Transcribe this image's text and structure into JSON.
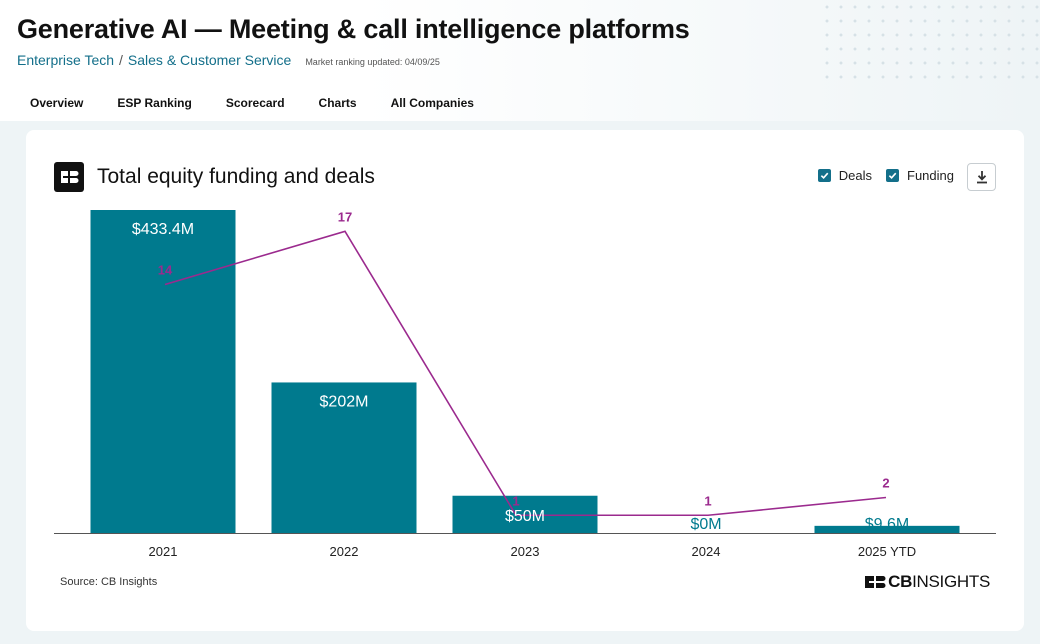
{
  "header": {
    "title": "Generative AI — Meeting & call intelligence platforms",
    "breadcrumb": [
      "Enterprise Tech",
      "Sales & Customer Service"
    ],
    "breadcrumb_sep": "/",
    "updated": "Market ranking updated: 04/09/25"
  },
  "tabs": [
    {
      "label": "Overview",
      "active": true
    },
    {
      "label": "ESP Ranking",
      "active": false
    },
    {
      "label": "Scorecard",
      "active": false
    },
    {
      "label": "Charts",
      "active": false
    },
    {
      "label": "All Companies",
      "active": false
    }
  ],
  "card": {
    "title": "Total equity funding and deals",
    "toggles": {
      "deals_label": "Deals",
      "funding_label": "Funding"
    },
    "source": "Source: CB Insights",
    "brand": {
      "bold": "CB",
      "rest": "INSIGHTS"
    }
  },
  "colors": {
    "bar": "#007a8e",
    "line": "#9b2a8e",
    "deals_label": "#9b2a8e",
    "accent": "#136f8a"
  },
  "icons": [
    "cb-insights-logo-icon",
    "checkbox-check-icon",
    "download-icon"
  ],
  "chart_data": {
    "type": "bar",
    "categories": [
      "2021",
      "2022",
      "2023",
      "2024",
      "2025 YTD"
    ],
    "series": [
      {
        "type": "bar",
        "values": [
          433.4,
          202,
          50,
          0,
          9.6
        ],
        "labels": [
          "$433.4M",
          "$202M",
          "$50M",
          "$0M",
          "$9.6M"
        ],
        "axis": "left"
      },
      {
        "type": "line",
        "values": [
          14,
          17,
          1,
          1,
          2
        ],
        "labels": [
          "14",
          "17",
          "1",
          "1",
          "2"
        ],
        "axis": "right"
      }
    ],
    "ylim_funding": [
      0,
      433.4
    ],
    "ylim_deals": [
      0,
      18.2
    ],
    "grid": false,
    "legend": "top-right"
  }
}
